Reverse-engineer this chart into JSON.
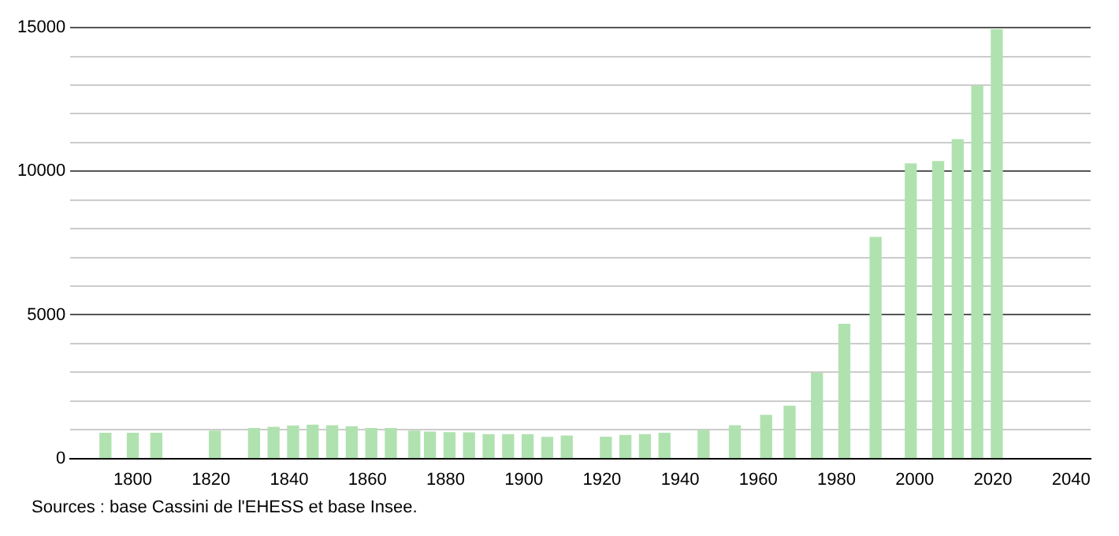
{
  "chart_data": {
    "type": "bar",
    "x": [
      1793,
      1800,
      1806,
      1821,
      1831,
      1836,
      1841,
      1846,
      1851,
      1856,
      1861,
      1866,
      1872,
      1876,
      1881,
      1886,
      1891,
      1896,
      1901,
      1906,
      1911,
      1921,
      1926,
      1931,
      1936,
      1946,
      1954,
      1962,
      1968,
      1975,
      1982,
      1990,
      1999,
      2006,
      2011,
      2016,
      2021
    ],
    "values": [
      880,
      880,
      880,
      950,
      1040,
      1080,
      1130,
      1160,
      1140,
      1100,
      1040,
      1040,
      950,
      920,
      900,
      890,
      830,
      830,
      830,
      730,
      780,
      740,
      800,
      830,
      880,
      970,
      1140,
      1500,
      1820,
      2970,
      4670,
      7700,
      10260,
      10340,
      11100,
      12970,
      14930
    ],
    "color": "#b0e2b0",
    "xlim": [
      1784,
      2045
    ],
    "xticks": [
      1800,
      1820,
      1840,
      1860,
      1880,
      1900,
      1920,
      1940,
      1960,
      1980,
      2000,
      2020,
      2040
    ],
    "ylim": [
      0,
      15000
    ],
    "yticks": [
      0,
      {
        "value": 1000,
        "label": null
      },
      {
        "value": 2000,
        "label": null
      },
      {
        "value": 3000,
        "label": null
      },
      {
        "value": 4000,
        "label": null
      },
      5000,
      {
        "value": 6000,
        "label": null
      },
      {
        "value": 7000,
        "label": null
      },
      {
        "value": 8000,
        "label": null
      },
      {
        "value": 9000,
        "label": null
      },
      10000,
      {
        "value": 11000,
        "label": null
      },
      {
        "value": 12000,
        "label": null
      },
      {
        "value": 13000,
        "label": null
      },
      {
        "value": 14000,
        "label": null
      },
      15000
    ],
    "grid": "y",
    "annotations": [
      "Sources : base Cassini de l'EHESS et base Insee."
    ]
  }
}
